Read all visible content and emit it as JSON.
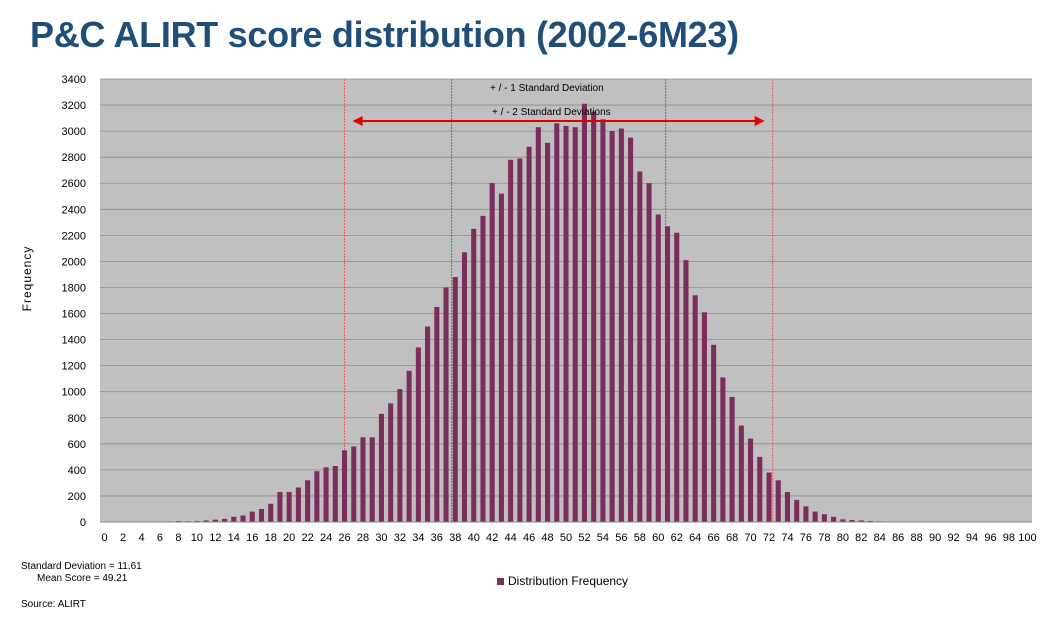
{
  "title": "P&C ALIRT score distribution (2002-6M23)",
  "stats": {
    "std_dev_text": "Standard Deviation = 11.61",
    "mean_text": "Mean Score =  49.21"
  },
  "source_text": "Source: ALIRT",
  "legend_label": "Distribution Frequency",
  "annotations": {
    "one_sd": "+ / -   1 Standard Deviation",
    "two_sd": "+ / -   2 Standard Deviations"
  },
  "colors": {
    "plot_bg": "#c0c0c0",
    "bar": "#7b2d5c",
    "sd1_line": "#4472c4",
    "sd2_line": "#e06060",
    "arrow": "#e00000",
    "title": "#1f4e79"
  },
  "chart_data": {
    "type": "bar",
    "title": "P&C ALIRT score distribution (2002-6M23)",
    "xlabel": "",
    "ylabel": "Frequency",
    "ylim": [
      0,
      3400
    ],
    "yticks": [
      0,
      200,
      400,
      600,
      800,
      1000,
      1200,
      1400,
      1600,
      1800,
      2000,
      2200,
      2400,
      2600,
      2800,
      3000,
      3200,
      3400
    ],
    "xlim": [
      0,
      100
    ],
    "xtick_step": 2,
    "grid": true,
    "legend": "bottom",
    "series": [
      {
        "name": "Distribution Frequency",
        "x": [
          0,
          1,
          2,
          3,
          4,
          5,
          6,
          7,
          8,
          9,
          10,
          11,
          12,
          13,
          14,
          15,
          16,
          17,
          18,
          19,
          20,
          21,
          22,
          23,
          24,
          25,
          26,
          27,
          28,
          29,
          30,
          31,
          32,
          33,
          34,
          35,
          36,
          37,
          38,
          39,
          40,
          41,
          42,
          43,
          44,
          45,
          46,
          47,
          48,
          49,
          50,
          51,
          52,
          53,
          54,
          55,
          56,
          57,
          58,
          59,
          60,
          61,
          62,
          63,
          64,
          65,
          66,
          67,
          68,
          69,
          70,
          71,
          72,
          73,
          74,
          75,
          76,
          77,
          78,
          79,
          80,
          81,
          82,
          83,
          84,
          85,
          86,
          87,
          88,
          89,
          90,
          91,
          92,
          93,
          94,
          95,
          96,
          97,
          98,
          99,
          100
        ],
        "values": [
          2,
          0,
          0,
          0,
          1,
          2,
          3,
          5,
          7,
          6,
          8,
          12,
          18,
          24,
          40,
          50,
          80,
          100,
          140,
          230,
          230,
          265,
          320,
          390,
          420,
          430,
          550,
          580,
          650,
          650,
          830,
          910,
          1020,
          1160,
          1340,
          1500,
          1650,
          1800,
          1880,
          2070,
          2250,
          2350,
          2600,
          2520,
          2780,
          2790,
          2880,
          3030,
          2910,
          3060,
          3040,
          3030,
          3210,
          3150,
          3090,
          3000,
          3020,
          2950,
          2690,
          2600,
          2360,
          2270,
          2220,
          2010,
          1740,
          1610,
          1360,
          1110,
          960,
          740,
          640,
          500,
          380,
          320,
          230,
          170,
          120,
          80,
          60,
          40,
          20,
          15,
          12,
          8,
          5,
          4,
          3,
          2,
          2,
          1,
          1,
          1,
          0,
          0,
          0,
          0,
          0,
          0,
          0,
          0,
          0
        ]
      }
    ],
    "reference_lines": [
      {
        "label": "+ / -   1 Standard Deviation",
        "x": [
          37.6,
          60.8
        ]
      },
      {
        "label": "+ / -   2 Standard Deviations",
        "x": [
          26.0,
          72.4
        ]
      }
    ]
  }
}
